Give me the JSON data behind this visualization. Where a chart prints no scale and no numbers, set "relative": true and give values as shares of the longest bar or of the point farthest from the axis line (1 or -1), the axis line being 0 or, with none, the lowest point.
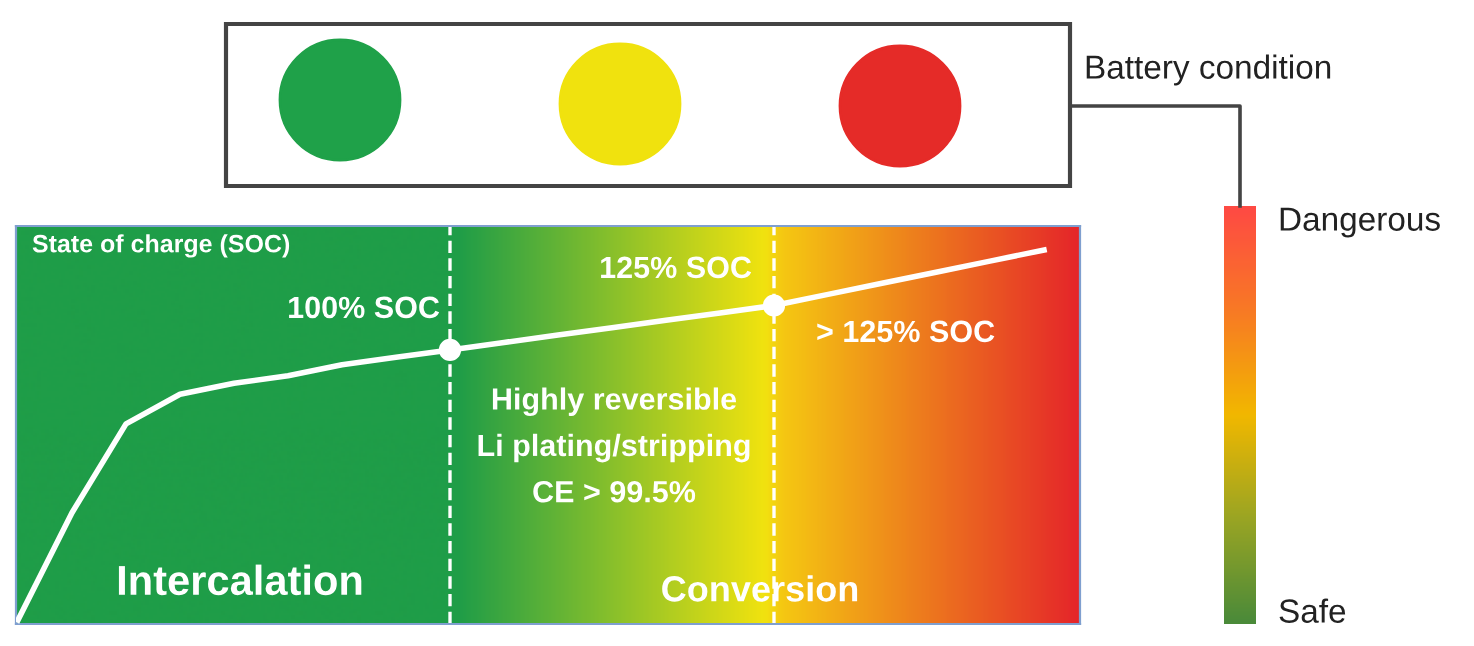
{
  "chart_data": {
    "type": "line",
    "relative": true,
    "title": "State of charge (SOC)",
    "categories": [
      null,
      null,
      null,
      null,
      null,
      null,
      null,
      null,
      null,
      null,
      null,
      null,
      null,
      null,
      null,
      null,
      null,
      null,
      null,
      null
    ],
    "series": [
      {
        "color": "#ffffff",
        "values": [
          0,
          0.29,
          0.53,
          0.61,
          0.64,
          0.66,
          0.69,
          0.71,
          0.73,
          0.75,
          0.77,
          0.79,
          0.81,
          0.83,
          0.85,
          0.88,
          0.91,
          0.94,
          0.97,
          1
        ]
      }
    ],
    "annotations": [
      "100% SOC",
      "125% SOC",
      "> 125% SOC",
      "Highly reversible\nLi plating/stripping\nCE > 99.5%",
      "Intercalation",
      "Conversion",
      "Battery condition",
      "Dangerous",
      "Safe"
    ]
  }
}
